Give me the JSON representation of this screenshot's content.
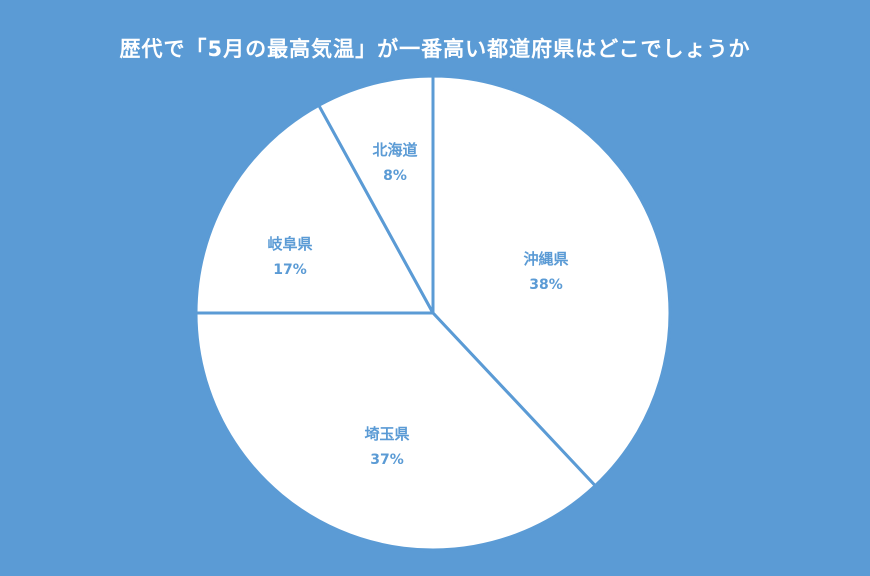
{
  "title": "歴代で「5月の最高気温」が一番高い都道府県はどこでしょうか",
  "colors": {
    "background": "#5B9BD5",
    "slice_fill": "#FFFFFF",
    "slice_border": "#5B9BD5",
    "label_text": "#5B9BD5",
    "title_text": "#FFFFFF"
  },
  "chart_data": {
    "type": "pie",
    "title": "歴代で「5月の最高気温」が一番高い都道府県はどこでしょうか",
    "categories": [
      "沖縄県",
      "埼玉県",
      "岐阜県",
      "北海道"
    ],
    "values": [
      38,
      37,
      17,
      8
    ],
    "value_labels": [
      "38%",
      "37%",
      "17%",
      "8%"
    ],
    "unit": "%",
    "start_angle": "12 o'clock",
    "direction": "clockwise",
    "legend": "none (data labels inside slices)"
  },
  "labels": [
    {
      "name": "沖縄県",
      "pct": "38%"
    },
    {
      "name": "埼玉県",
      "pct": "37%"
    },
    {
      "name": "岐阜県",
      "pct": "17%"
    },
    {
      "name": "北海道",
      "pct": "8%"
    }
  ]
}
